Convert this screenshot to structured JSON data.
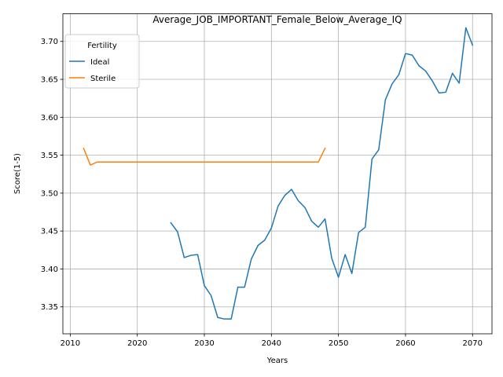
{
  "chart_data": {
    "type": "line",
    "title": "Average_JOB_IMPORTANT_Female_Below_Average_IQ",
    "xlabel": "Years",
    "ylabel": "Score(1-5)",
    "xlim": [
      2008.9,
      2072.9
    ],
    "ylim": [
      3.3145,
      3.7365
    ],
    "xticks": [
      2010,
      2020,
      2030,
      2040,
      2050,
      2060,
      2070
    ],
    "yticks": [
      3.35,
      3.4,
      3.45,
      3.5,
      3.55,
      3.6,
      3.65,
      3.7
    ],
    "ytick_labels": [
      "3.35",
      "3.40",
      "3.45",
      "3.50",
      "3.55",
      "3.60",
      "3.65",
      "3.70"
    ],
    "grid": true,
    "legend": {
      "title": "Fertility",
      "position": "upper-left"
    },
    "series": [
      {
        "name": "Ideal",
        "color": "#1f77b4",
        "x": [
          2025,
          2026,
          2027,
          2028,
          2029,
          2030,
          2031,
          2032,
          2033,
          2034,
          2035,
          2036,
          2037,
          2038,
          2039,
          2040,
          2041,
          2042,
          2043,
          2044,
          2045,
          2046,
          2047,
          2048,
          2049,
          2050,
          2051,
          2052,
          2053,
          2054,
          2055,
          2056,
          2057,
          2058,
          2059,
          2060,
          2061,
          2062,
          2063,
          2064,
          2065,
          2066,
          2067,
          2068,
          2069,
          2070
        ],
        "y": [
          3.461,
          3.449,
          3.415,
          3.418,
          3.419,
          3.378,
          3.365,
          3.336,
          3.334,
          3.334,
          3.376,
          3.376,
          3.413,
          3.431,
          3.438,
          3.454,
          3.483,
          3.497,
          3.505,
          3.49,
          3.481,
          3.463,
          3.455,
          3.466,
          3.414,
          3.389,
          3.419,
          3.394,
          3.448,
          3.455,
          3.545,
          3.557,
          3.623,
          3.644,
          3.656,
          3.684,
          3.682,
          3.668,
          3.661,
          3.648,
          3.632,
          3.633,
          3.658,
          3.645,
          3.718,
          3.695
        ]
      },
      {
        "name": "Sterile",
        "color": "#ff7f0e",
        "x": [
          2012,
          2013,
          2014,
          2015,
          2016,
          2017,
          2018,
          2019,
          2020,
          2021,
          2022,
          2023,
          2024,
          2025,
          2026,
          2027,
          2028,
          2029,
          2030,
          2031,
          2032,
          2033,
          2034,
          2035,
          2036,
          2037,
          2038,
          2039,
          2040,
          2041,
          2042,
          2043,
          2044,
          2045,
          2046,
          2047,
          2048
        ],
        "y": [
          3.559,
          3.537,
          3.541,
          3.541,
          3.541,
          3.541,
          3.541,
          3.541,
          3.541,
          3.541,
          3.541,
          3.541,
          3.541,
          3.541,
          3.541,
          3.541,
          3.541,
          3.541,
          3.541,
          3.541,
          3.541,
          3.541,
          3.541,
          3.541,
          3.541,
          3.541,
          3.541,
          3.541,
          3.541,
          3.541,
          3.541,
          3.541,
          3.541,
          3.541,
          3.541,
          3.541,
          3.559
        ]
      }
    ]
  }
}
